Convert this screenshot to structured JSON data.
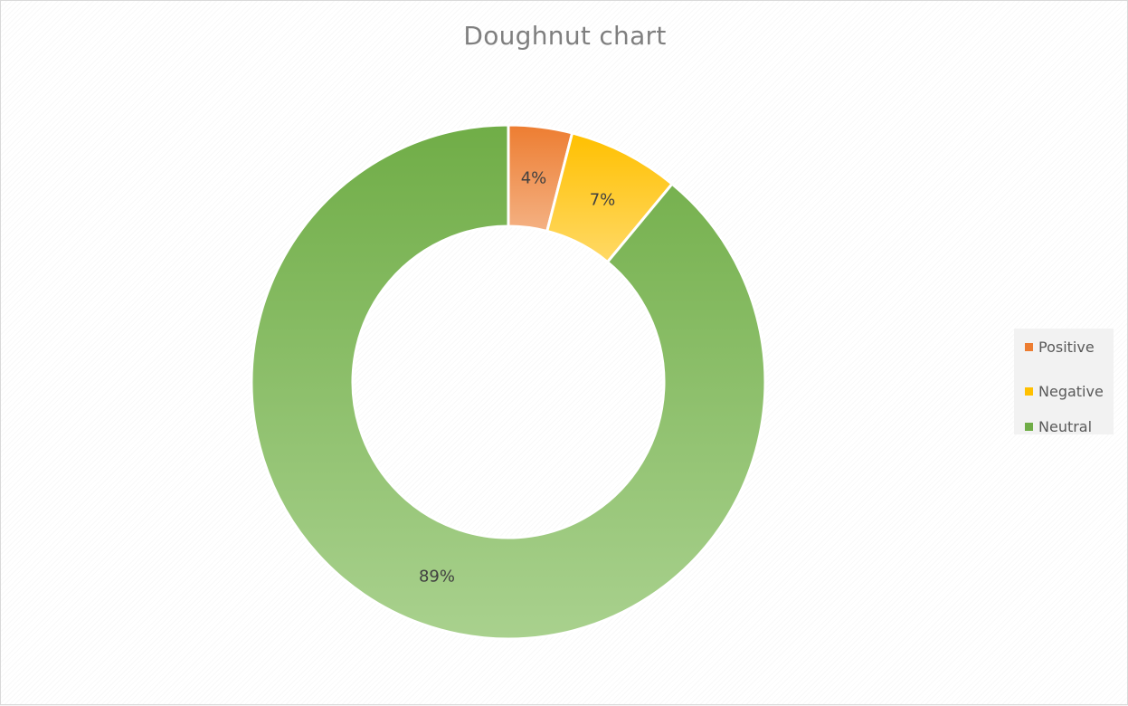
{
  "chart_data": {
    "type": "doughnut",
    "title": "Doughnut chart",
    "categories": [
      "Positive",
      "Negative",
      "Neutral"
    ],
    "values": [
      4,
      7,
      89
    ],
    "labels": [
      "4%",
      "7%",
      "89%"
    ],
    "colors": {
      "Positive": {
        "top": "#ed7d31",
        "bottom": "#f4b183"
      },
      "Negative": {
        "top": "#ffc000",
        "bottom": "#ffd966"
      },
      "Neutral": {
        "top": "#70ad47",
        "bottom": "#a9d18e"
      }
    },
    "legend_position": "right",
    "start_angle_deg": 0,
    "direction": "clockwise"
  },
  "legend": {
    "items": [
      {
        "label": "Positive",
        "color": "#ed7d31"
      },
      {
        "label": "Negative",
        "color": "#ffc000"
      },
      {
        "label": "Neutral",
        "color": "#70ad47"
      }
    ]
  }
}
